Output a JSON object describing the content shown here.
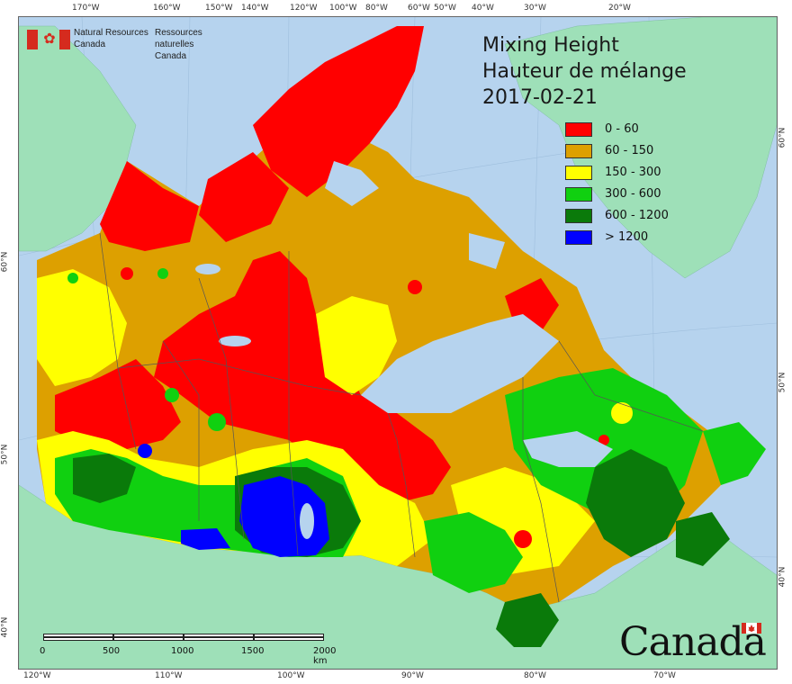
{
  "agency": {
    "name_en_line1": "Natural Resources",
    "name_en_line2": "Canada",
    "name_fr_line1": "Ressources naturelles",
    "name_fr_line2": "Canada"
  },
  "title": {
    "line1": "Mixing Height",
    "line2": "Hauteur de mélange",
    "date": "2017-02-21"
  },
  "legend": {
    "items": [
      {
        "label": "0 - 60",
        "color": "#ff0000"
      },
      {
        "label": "60 - 150",
        "color": "#dda000"
      },
      {
        "label": "150 - 300",
        "color": "#ffff00"
      },
      {
        "label": "300 - 600",
        "color": "#10d010"
      },
      {
        "label": "600 - 1200",
        "color": "#0a7a0a"
      },
      {
        "label": "> 1200",
        "color": "#0000ff"
      }
    ]
  },
  "scale": {
    "labels": [
      "0",
      "500",
      "1000",
      "1500",
      "2000 km"
    ]
  },
  "axes": {
    "top": [
      "170°W",
      "160°W",
      "150°W",
      "140°W",
      "120°W",
      "100°W",
      "80°W",
      "60°W",
      "50°W",
      "40°W",
      "30°W",
      "20°W"
    ],
    "bottom": [
      "120°W",
      "110°W",
      "100°W",
      "90°W",
      "80°W",
      "70°W"
    ],
    "left": [
      "60°N",
      "50°N",
      "40°N"
    ],
    "right": [
      "60°N",
      "50°N",
      "40°N"
    ]
  },
  "wordmark": "Canada",
  "colors": {
    "water": "#b6d3ee",
    "land_outside": "#9ee0b8",
    "border": "#555555"
  }
}
